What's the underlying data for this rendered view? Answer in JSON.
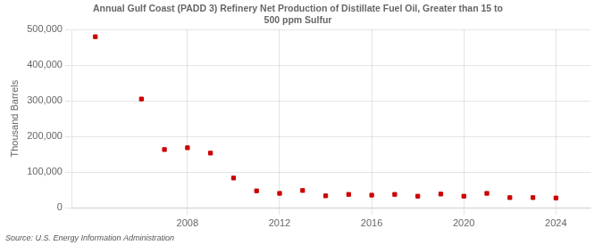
{
  "chart_data": {
    "type": "scatter",
    "title": [
      "Annual Gulf Coast (PADD 3) Refinery Net Production of Distillate Fuel Oil, Greater than 15 to",
      "500 ppm Sulfur"
    ],
    "ylabel": "Thousand Barrels",
    "source": "Source: U.S. Energy Information Administration",
    "color": "#cc0000",
    "marker": "square",
    "x": [
      2004,
      2006,
      2007,
      2008,
      2009,
      2010,
      2011,
      2012,
      2013,
      2014,
      2015,
      2016,
      2017,
      2018,
      2019,
      2020,
      2021,
      2022,
      2023,
      2024
    ],
    "values": [
      480000,
      305000,
      163000,
      168000,
      153000,
      83000,
      47000,
      40000,
      48000,
      33000,
      37000,
      35000,
      37000,
      32000,
      38000,
      32000,
      40000,
      28000,
      28000,
      27000
    ],
    "xlim": [
      2003,
      2025.5
    ],
    "ylim": [
      0,
      500000
    ],
    "xticks": [
      2008,
      2012,
      2016,
      2020,
      2024
    ],
    "yticks": [
      {
        "value": 0,
        "label": "0"
      },
      {
        "value": 100000,
        "label": "100,000"
      },
      {
        "value": 200000,
        "label": "200,000"
      },
      {
        "value": 300000,
        "label": "300,000"
      },
      {
        "value": 400000,
        "label": "400,000"
      },
      {
        "value": 500000,
        "label": "500,000"
      }
    ],
    "grid": true
  }
}
